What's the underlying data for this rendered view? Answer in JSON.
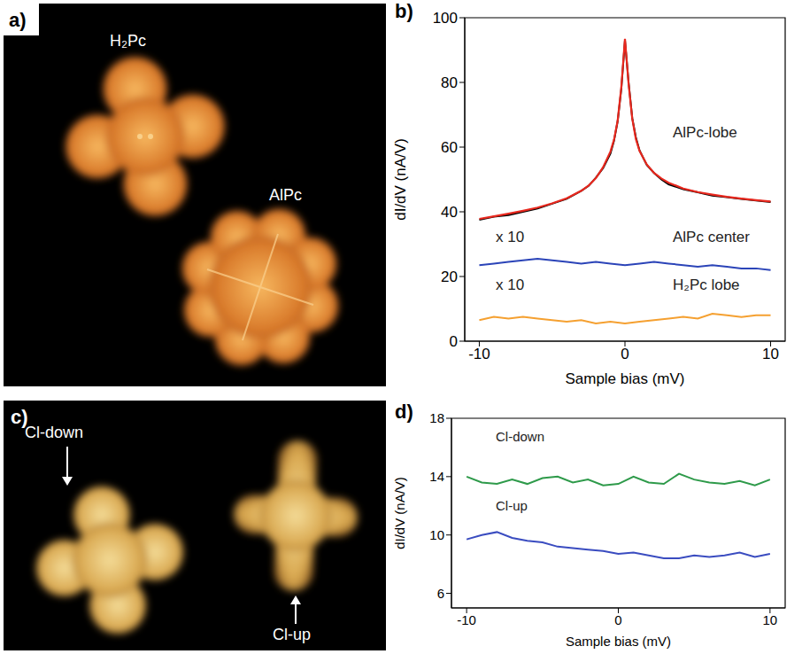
{
  "images": [
    {
      "panel": "a)",
      "labels": [
        "H₂Pc",
        "AlPc"
      ]
    },
    {
      "panel": "c)",
      "labels": [
        "Cl-down",
        "Cl-up"
      ]
    }
  ],
  "chart_data": [
    {
      "type": "line",
      "panel": "b)",
      "x_label": "Sample bias (mV)",
      "y_label": "dI/dV (nA/V)",
      "xlim": [
        -11,
        11
      ],
      "xticks": [
        -10,
        0,
        10
      ],
      "ylim": [
        0,
        100
      ],
      "yticks": [
        0,
        20,
        40,
        60,
        80,
        100
      ],
      "grid": false,
      "annotations": [
        "x 10",
        "x 10"
      ],
      "series": [
        {
          "name": "AlPc-lobe",
          "color": "#000000",
          "x": [
            -10,
            -9,
            -8,
            -7,
            -6,
            -5,
            -4,
            -3,
            -2.5,
            -2,
            -1.5,
            -1,
            -0.75,
            -0.5,
            -0.25,
            0,
            0.25,
            0.5,
            0.75,
            1,
            1.5,
            2,
            2.5,
            3,
            4,
            5,
            6,
            7,
            8,
            9,
            10
          ],
          "values": [
            37.5,
            38.5,
            39,
            40,
            41,
            42.5,
            44,
            46.5,
            48,
            50.5,
            53.5,
            58,
            62,
            68,
            78,
            93,
            80,
            69,
            63,
            59,
            54.5,
            52,
            50,
            48.5,
            47,
            46,
            45,
            44.5,
            44,
            43.5,
            43
          ]
        },
        {
          "color": "#e8281e",
          "x": [
            -10,
            -9,
            -8,
            -7,
            -6,
            -5,
            -4,
            -3,
            -2.5,
            -2,
            -1.5,
            -1,
            -0.75,
            -0.5,
            -0.25,
            0,
            0.25,
            0.5,
            0.75,
            1,
            1.5,
            2,
            2.5,
            3,
            4,
            5,
            6,
            7,
            8,
            9,
            10
          ],
          "values": [
            37.8,
            38.6,
            39.4,
            40.3,
            41.3,
            42.6,
            44.2,
            46.5,
            48.1,
            50.4,
            53.8,
            58.6,
            62.3,
            68.2,
            78.5,
            93.5,
            79.5,
            68.8,
            62.5,
            58.8,
            54.6,
            52.0,
            50.3,
            49.0,
            47.2,
            46.1,
            45.3,
            44.6,
            44.1,
            43.6,
            43.2
          ]
        },
        {
          "name": "AlPc center",
          "color": "#2b44b8",
          "x": [
            -10,
            -9,
            -8,
            -7,
            -6,
            -5,
            -4,
            -3,
            -2,
            -1,
            0,
            1,
            2,
            3,
            4,
            5,
            6,
            7,
            8,
            9,
            10
          ],
          "values": [
            23.5,
            24,
            24.5,
            25,
            25.5,
            25,
            24.5,
            24,
            24.5,
            24,
            23.5,
            24,
            24.5,
            24,
            23.5,
            23,
            23.5,
            23,
            22.5,
            22.5,
            22
          ]
        },
        {
          "name": "H₂Pc lobe",
          "color": "#f5a030",
          "x": [
            -10,
            -9,
            -8,
            -7,
            -6,
            -5,
            -4,
            -3,
            -2,
            -1,
            0,
            1,
            2,
            3,
            4,
            5,
            6,
            7,
            8,
            9,
            10
          ],
          "values": [
            6.5,
            7.5,
            7,
            7.5,
            7,
            6.5,
            6,
            6.5,
            5.5,
            6,
            5.5,
            6,
            6.5,
            7,
            7.5,
            7,
            8.5,
            8,
            7.5,
            8,
            8
          ]
        }
      ]
    },
    {
      "type": "line",
      "panel": "d)",
      "x_label": "Sample bias (mV)",
      "y_label": "dI/dV (nA/V)",
      "xlim": [
        -11,
        11
      ],
      "xticks": [
        -10,
        0,
        10
      ],
      "ylim": [
        5,
        18
      ],
      "yticks": [
        6,
        10,
        14,
        18
      ],
      "grid": false,
      "series": [
        {
          "name": "Cl-down",
          "color": "#2e9a4a",
          "x": [
            -10,
            -9,
            -8,
            -7,
            -6,
            -5,
            -4,
            -3,
            -2,
            -1,
            0,
            1,
            2,
            3,
            4,
            5,
            6,
            7,
            8,
            9,
            10
          ],
          "values": [
            14,
            13.6,
            13.5,
            13.8,
            13.5,
            13.9,
            14,
            13.6,
            13.8,
            13.4,
            13.5,
            14,
            13.6,
            13.5,
            14.2,
            13.8,
            13.6,
            13.5,
            13.7,
            13.4,
            13.8
          ]
        },
        {
          "name": "Cl-up",
          "color": "#3a4cc0",
          "x": [
            -10,
            -9,
            -8,
            -7,
            -6,
            -5,
            -4,
            -3,
            -2,
            -1,
            0,
            1,
            2,
            3,
            4,
            5,
            6,
            7,
            8,
            9,
            10
          ],
          "values": [
            9.7,
            10,
            10.2,
            9.8,
            9.6,
            9.5,
            9.2,
            9.1,
            9,
            8.9,
            8.7,
            8.8,
            8.6,
            8.4,
            8.4,
            8.6,
            8.5,
            8.6,
            8.8,
            8.5,
            8.7
          ]
        }
      ]
    }
  ]
}
